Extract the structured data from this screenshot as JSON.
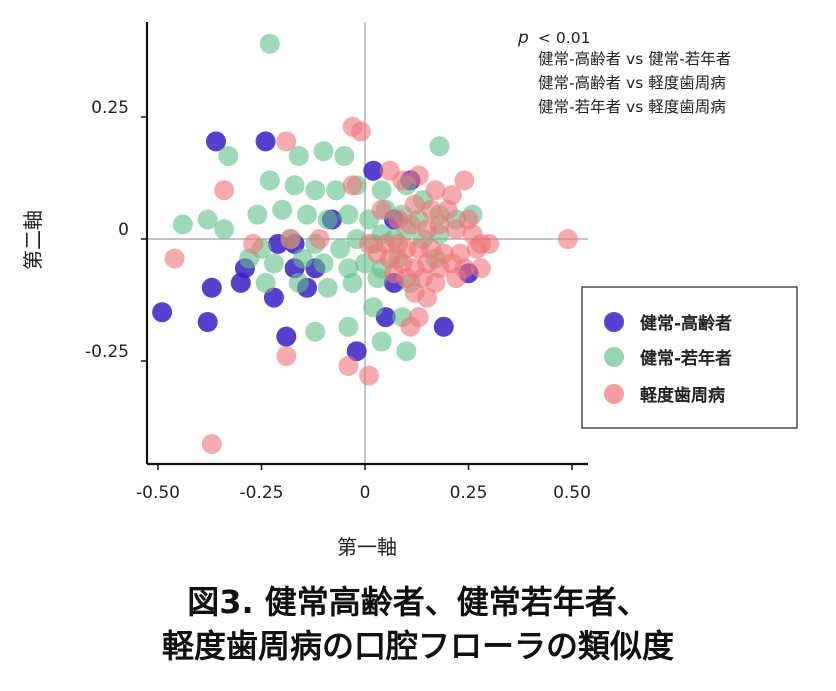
{
  "chart_data": {
    "type": "scatter",
    "xlabel": "第一軸",
    "ylabel": "第二軸",
    "xlim": [
      -0.52,
      0.52
    ],
    "ylim": [
      -0.46,
      0.44
    ],
    "x_ticks": [
      "-0.50",
      "-0.25",
      "0",
      "0.25",
      "0.50"
    ],
    "x_tick_values": [
      -0.5,
      -0.25,
      0,
      0.25,
      0.5
    ],
    "y_ticks": [
      "0.25",
      "0",
      "-0.25"
    ],
    "y_tick_values": [
      0.25,
      0,
      -0.25
    ],
    "zero_lines": true,
    "legend_position": "right",
    "annotation": {
      "p_symbol": "p",
      "p_text": "< 0.01",
      "lines": [
        "健常-高齢者 vs 健常-若年者",
        "健常-高齢者 vs 軽度歯周病",
        "健常-若年者 vs 軽度歯周病"
      ]
    },
    "series": [
      {
        "name": "健常-高齢者",
        "color": "#3a1ec4",
        "points": [
          [
            -0.36,
            0.2
          ],
          [
            -0.24,
            0.2
          ],
          [
            0.02,
            0.14
          ],
          [
            0.11,
            0.12
          ],
          [
            -0.08,
            0.04
          ],
          [
            0.07,
            0.04
          ],
          [
            -0.21,
            -0.01
          ],
          [
            -0.17,
            -0.01
          ],
          [
            -0.29,
            -0.06
          ],
          [
            -0.3,
            -0.09
          ],
          [
            -0.17,
            -0.06
          ],
          [
            -0.12,
            -0.06
          ],
          [
            0.25,
            -0.07
          ],
          [
            -0.37,
            -0.1
          ],
          [
            -0.22,
            -0.12
          ],
          [
            -0.14,
            -0.1
          ],
          [
            0.07,
            -0.09
          ],
          [
            -0.49,
            -0.15
          ],
          [
            -0.38,
            -0.17
          ],
          [
            0.05,
            -0.16
          ],
          [
            -0.19,
            -0.2
          ],
          [
            0.19,
            -0.18
          ],
          [
            -0.02,
            -0.23
          ]
        ]
      },
      {
        "name": "健常-若年者",
        "color": "#5fbf87",
        "points": [
          [
            -0.23,
            0.4
          ],
          [
            -0.33,
            0.17
          ],
          [
            -0.16,
            0.17
          ],
          [
            -0.1,
            0.18
          ],
          [
            -0.05,
            0.17
          ],
          [
            0.18,
            0.19
          ],
          [
            -0.23,
            0.12
          ],
          [
            -0.17,
            0.11
          ],
          [
            -0.12,
            0.1
          ],
          [
            -0.07,
            0.1
          ],
          [
            -0.02,
            0.11
          ],
          [
            0.04,
            0.1
          ],
          [
            0.1,
            0.11
          ],
          [
            0.14,
            0.08
          ],
          [
            -0.44,
            0.03
          ],
          [
            -0.38,
            0.04
          ],
          [
            -0.34,
            0.02
          ],
          [
            -0.26,
            0.05
          ],
          [
            -0.2,
            0.06
          ],
          [
            -0.14,
            0.05
          ],
          [
            -0.09,
            0.04
          ],
          [
            -0.04,
            0.05
          ],
          [
            0.01,
            0.04
          ],
          [
            0.05,
            0.06
          ],
          [
            0.09,
            0.05
          ],
          [
            0.13,
            0.04
          ],
          [
            0.18,
            0.05
          ],
          [
            0.22,
            0.04
          ],
          [
            0.26,
            0.05
          ],
          [
            -0.25,
            -0.02
          ],
          [
            -0.18,
            0.0
          ],
          [
            -0.12,
            -0.01
          ],
          [
            -0.06,
            -0.02
          ],
          [
            -0.02,
            0.0
          ],
          [
            0.02,
            -0.01
          ],
          [
            0.04,
            0.01
          ],
          [
            0.07,
            0.0
          ],
          [
            0.1,
            0.02
          ],
          [
            0.14,
            0.0
          ],
          [
            0.18,
            0.01
          ],
          [
            -0.28,
            -0.04
          ],
          [
            -0.22,
            -0.05
          ],
          [
            -0.15,
            -0.04
          ],
          [
            -0.1,
            -0.05
          ],
          [
            -0.04,
            -0.06
          ],
          [
            0.0,
            -0.05
          ],
          [
            0.04,
            -0.06
          ],
          [
            0.08,
            -0.04
          ],
          [
            0.17,
            -0.04
          ],
          [
            -0.24,
            -0.09
          ],
          [
            -0.16,
            -0.09
          ],
          [
            -0.09,
            -0.1
          ],
          [
            -0.03,
            -0.09
          ],
          [
            0.03,
            -0.08
          ],
          [
            0.11,
            -0.09
          ],
          [
            0.02,
            -0.14
          ],
          [
            0.09,
            -0.16
          ],
          [
            -0.12,
            -0.19
          ],
          [
            -0.04,
            -0.18
          ],
          [
            0.04,
            -0.21
          ],
          [
            0.1,
            -0.23
          ]
        ]
      },
      {
        "name": "軽度歯周病",
        "color": "#f0747a",
        "points": [
          [
            -0.37,
            -0.42
          ],
          [
            -0.01,
            0.22
          ],
          [
            -0.03,
            0.23
          ],
          [
            -0.19,
            0.2
          ],
          [
            0.06,
            0.14
          ],
          [
            0.09,
            0.12
          ],
          [
            0.13,
            0.13
          ],
          [
            0.24,
            0.12
          ],
          [
            -0.34,
            0.1
          ],
          [
            -0.03,
            0.11
          ],
          [
            0.17,
            0.1
          ],
          [
            0.21,
            0.09
          ],
          [
            0.12,
            0.07
          ],
          [
            0.16,
            0.06
          ],
          [
            0.2,
            0.06
          ],
          [
            0.25,
            0.04
          ],
          [
            0.04,
            0.06
          ],
          [
            0.08,
            0.04
          ],
          [
            0.11,
            0.03
          ],
          [
            0.15,
            0.02
          ],
          [
            0.18,
            0.03
          ],
          [
            0.22,
            0.02
          ],
          [
            0.26,
            0.01
          ],
          [
            0.28,
            -0.01
          ],
          [
            0.3,
            -0.01
          ],
          [
            0.49,
            0.0
          ],
          [
            -0.27,
            -0.01
          ],
          [
            -0.18,
            0.0
          ],
          [
            -0.11,
            0.0
          ],
          [
            0.01,
            -0.01
          ],
          [
            0.05,
            -0.01
          ],
          [
            0.08,
            -0.01
          ],
          [
            0.1,
            -0.02
          ],
          [
            0.13,
            -0.02
          ],
          [
            0.16,
            -0.02
          ],
          [
            0.19,
            -0.03
          ],
          [
            0.23,
            -0.03
          ],
          [
            0.27,
            -0.02
          ],
          [
            0.03,
            -0.03
          ],
          [
            0.06,
            -0.04
          ],
          [
            0.09,
            -0.05
          ],
          [
            0.12,
            -0.06
          ],
          [
            0.15,
            -0.05
          ],
          [
            0.18,
            -0.06
          ],
          [
            0.21,
            -0.05
          ],
          [
            0.24,
            -0.06
          ],
          [
            0.28,
            -0.06
          ],
          [
            0.07,
            -0.07
          ],
          [
            0.1,
            -0.08
          ],
          [
            0.14,
            -0.08
          ],
          [
            0.17,
            -0.09
          ],
          [
            0.22,
            -0.08
          ],
          [
            -0.46,
            -0.04
          ],
          [
            0.12,
            -0.11
          ],
          [
            0.15,
            -0.12
          ],
          [
            0.11,
            -0.18
          ],
          [
            -0.19,
            -0.24
          ],
          [
            -0.04,
            -0.26
          ],
          [
            0.01,
            -0.28
          ],
          [
            0.13,
            -0.16
          ]
        ]
      }
    ]
  },
  "caption": {
    "line1": "図3. 健常高齢者、健常若年者、",
    "line2": "軽度歯周病の口腔フローラの類似度"
  }
}
